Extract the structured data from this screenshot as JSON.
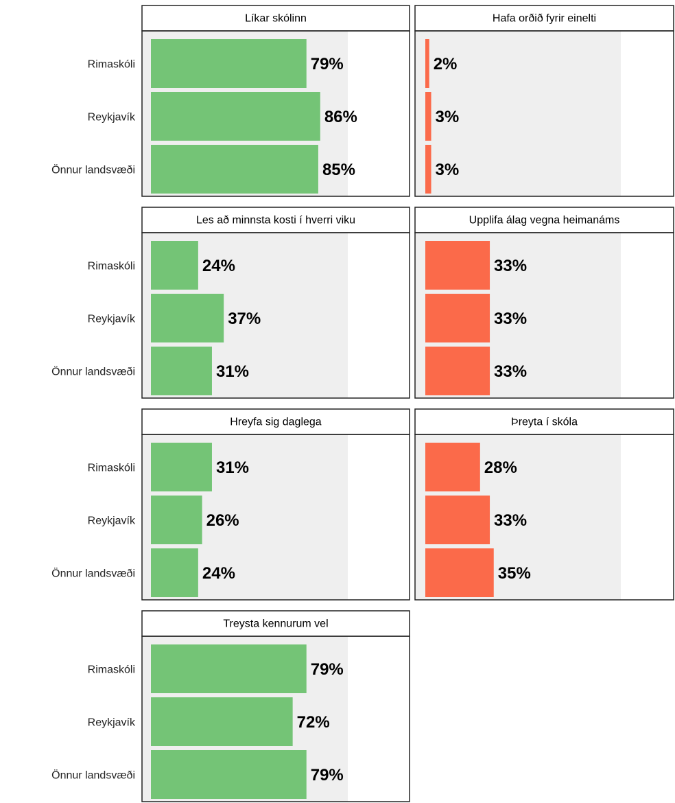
{
  "chart_data": [
    {
      "type": "barh",
      "title": "Líkar skólinn",
      "categories": [
        "Rimaskóli",
        "Reykjavík",
        "Önnur landsvæði"
      ],
      "values": [
        79,
        86,
        85
      ],
      "value_labels": [
        "79%",
        "86%",
        "85%"
      ],
      "color": "#74c476",
      "xlim": [
        0,
        100
      ]
    },
    {
      "type": "barh",
      "title": "Hafa orðið fyrir einelti",
      "values": [
        2,
        3,
        3
      ],
      "value_labels": [
        "2%",
        "3%",
        "3%"
      ],
      "color": "#fb6a4a",
      "xlim": [
        0,
        100
      ]
    },
    {
      "type": "barh",
      "title": "Les að minnsta kosti í hverri viku",
      "categories": [
        "Rimaskóli",
        "Reykjavík",
        "Önnur landsvæði"
      ],
      "values": [
        24,
        37,
        31
      ],
      "value_labels": [
        "24%",
        "37%",
        "31%"
      ],
      "color": "#74c476",
      "xlim": [
        0,
        100
      ]
    },
    {
      "type": "barh",
      "title": "Upplifa álag vegna heimanáms",
      "values": [
        33,
        33,
        33
      ],
      "value_labels": [
        "33%",
        "33%",
        "33%"
      ],
      "color": "#fb6a4a",
      "xlim": [
        0,
        100
      ]
    },
    {
      "type": "barh",
      "title": "Hreyfa sig daglega",
      "categories": [
        "Rimaskóli",
        "Reykjavík",
        "Önnur landsvæði"
      ],
      "values": [
        31,
        26,
        24
      ],
      "value_labels": [
        "31%",
        "26%",
        "24%"
      ],
      "color": "#74c476",
      "xlim": [
        0,
        100
      ]
    },
    {
      "type": "barh",
      "title": "Þreyta í skóla",
      "values": [
        28,
        33,
        35
      ],
      "value_labels": [
        "28%",
        "33%",
        "35%"
      ],
      "color": "#fb6a4a",
      "xlim": [
        0,
        100
      ]
    },
    {
      "type": "barh",
      "title": "Treysta kennurum vel",
      "categories": [
        "Rimaskóli",
        "Reykjavík",
        "Önnur landsvæði"
      ],
      "values": [
        79,
        72,
        79
      ],
      "value_labels": [
        "79%",
        "72%",
        "79%"
      ],
      "color": "#74c476",
      "xlim": [
        0,
        100
      ]
    }
  ]
}
